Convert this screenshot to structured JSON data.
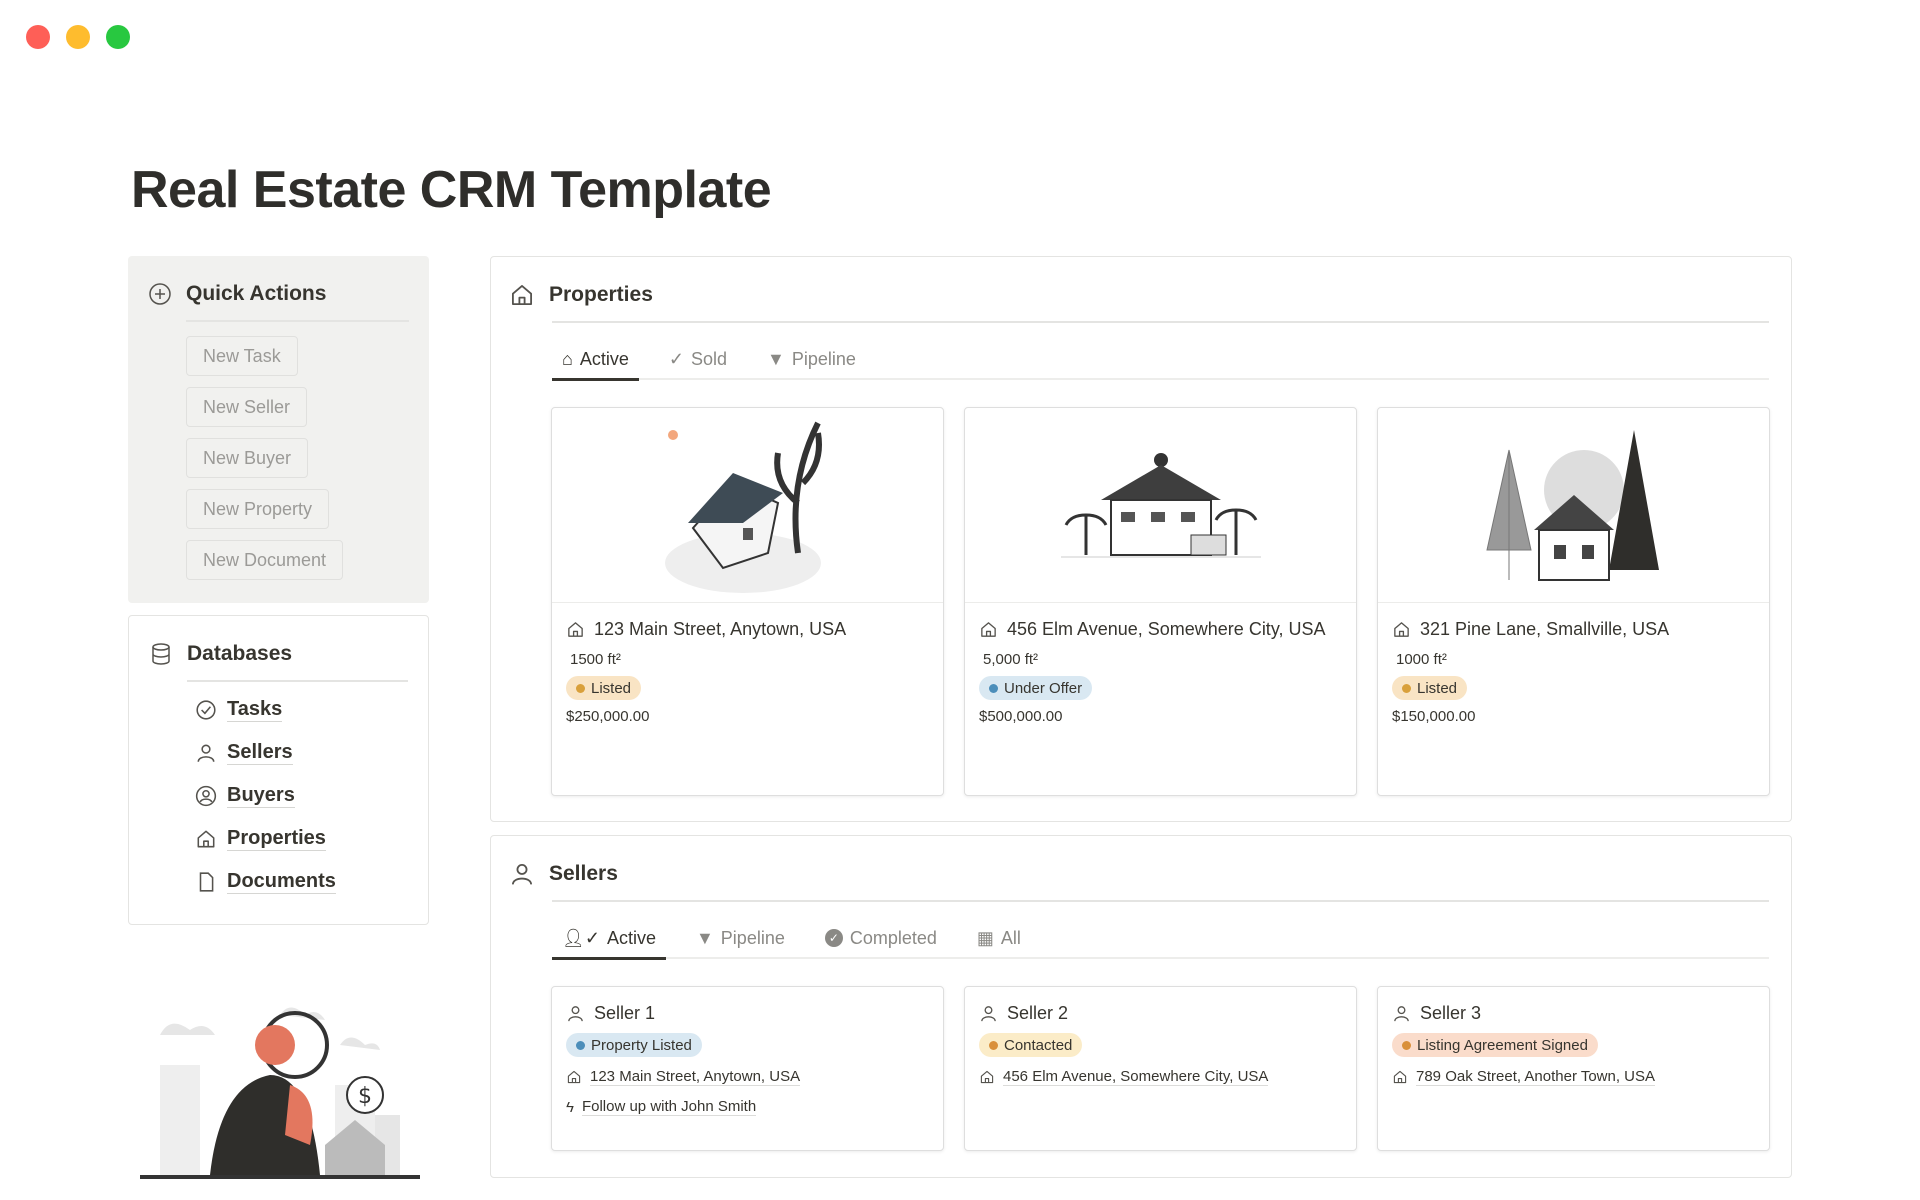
{
  "window": {
    "controls": [
      "close",
      "minimize",
      "maximize"
    ],
    "colors": [
      "#fe5f57",
      "#febc2e",
      "#28c840"
    ]
  },
  "page_title": "Real Estate CRM Template",
  "quick_actions": {
    "title": "Quick Actions",
    "icon": "plus-circle-icon",
    "buttons": [
      "New Task",
      "New Seller",
      "New Buyer",
      "New Property",
      "New Document"
    ]
  },
  "databases": {
    "title": "Databases",
    "icon": "database-icon",
    "items": [
      {
        "label": "Tasks",
        "icon": "check-circle-icon"
      },
      {
        "label": "Sellers",
        "icon": "person-icon"
      },
      {
        "label": "Buyers",
        "icon": "person-circle-icon"
      },
      {
        "label": "Properties",
        "icon": "house-icon"
      },
      {
        "label": "Documents",
        "icon": "document-icon"
      }
    ]
  },
  "properties": {
    "title": "Properties",
    "tabs": [
      "Active",
      "Sold",
      "Pipeline"
    ],
    "active_tab": "Active",
    "cards": [
      {
        "address": "123 Main Street, Anytown, USA",
        "area": "1500 ft²",
        "status": "Listed",
        "status_color": "#f9e4c4",
        "dot": "#d9a03b",
        "price": "$250,000.00"
      },
      {
        "address": "456 Elm Avenue, Somewhere City, USA",
        "area": "5,000 ft²",
        "status": "Under Offer",
        "status_color": "#d9e8f2",
        "dot": "#4c8eba",
        "price": "$500,000.00"
      },
      {
        "address": "321 Pine Lane, Smallville, USA",
        "area": "1000 ft²",
        "status": "Listed",
        "status_color": "#f9e4c4",
        "dot": "#d9a03b",
        "price": "$150,000.00"
      }
    ]
  },
  "sellers": {
    "title": "Sellers",
    "tabs": [
      "Active",
      "Pipeline",
      "Completed",
      "All"
    ],
    "active_tab": "Active",
    "cards": [
      {
        "name": "Seller 1",
        "status": "Property Listed",
        "status_color": "#d9e8f2",
        "dot": "#4c8eba",
        "address": "123 Main Street, Anytown, USA",
        "task": "Follow up with John Smith"
      },
      {
        "name": "Seller 2",
        "status": "Contacted",
        "status_color": "#fbecc8",
        "dot": "#d9903b",
        "address": "456 Elm Avenue, Somewhere City, USA"
      },
      {
        "name": "Seller 3",
        "status": "Listing Agreement Signed",
        "status_color": "#fadccb",
        "dot": "#d9903b",
        "address": "789 Oak Street, Another Town, USA"
      }
    ]
  }
}
